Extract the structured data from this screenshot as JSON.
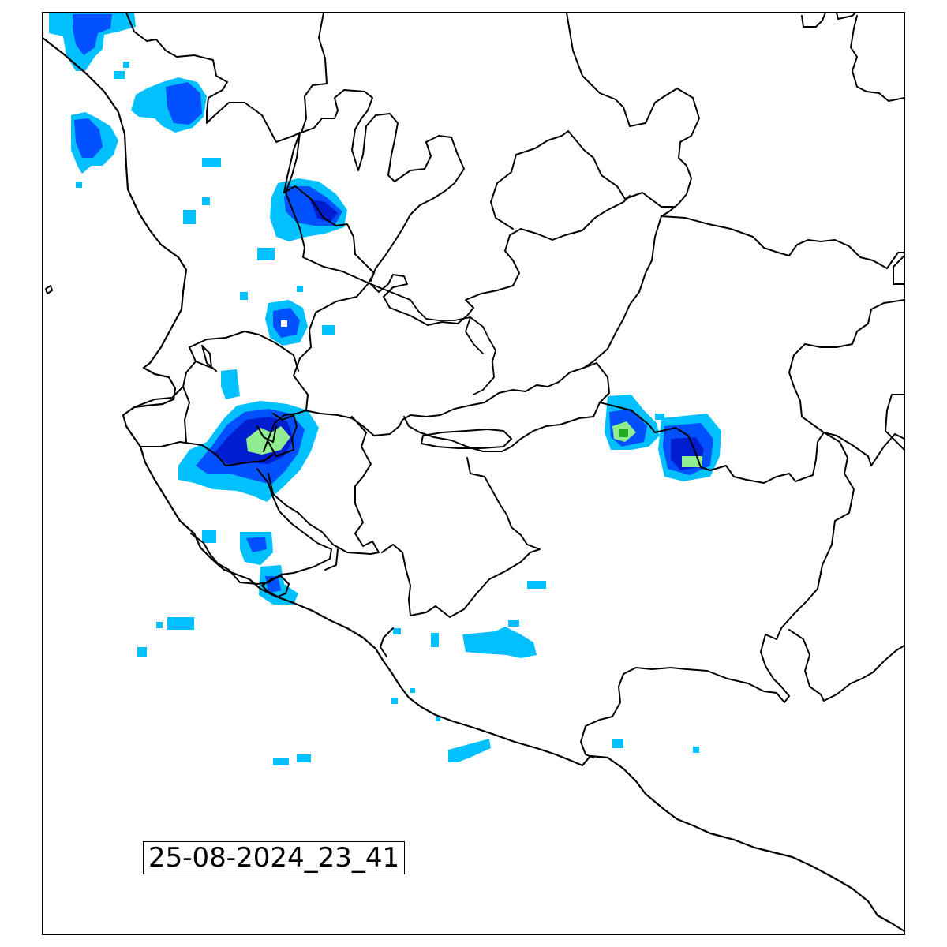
{
  "map": {
    "timestamp": "25-08-2024_23_41",
    "colors": {
      "light_echo": "#00c0ff",
      "medium_echo": "#0050ff",
      "strong_echo": "#001ed0",
      "heavy_echo": "#90ee90",
      "extreme_echo": "#22aa22",
      "boundary": "#000000"
    }
  }
}
